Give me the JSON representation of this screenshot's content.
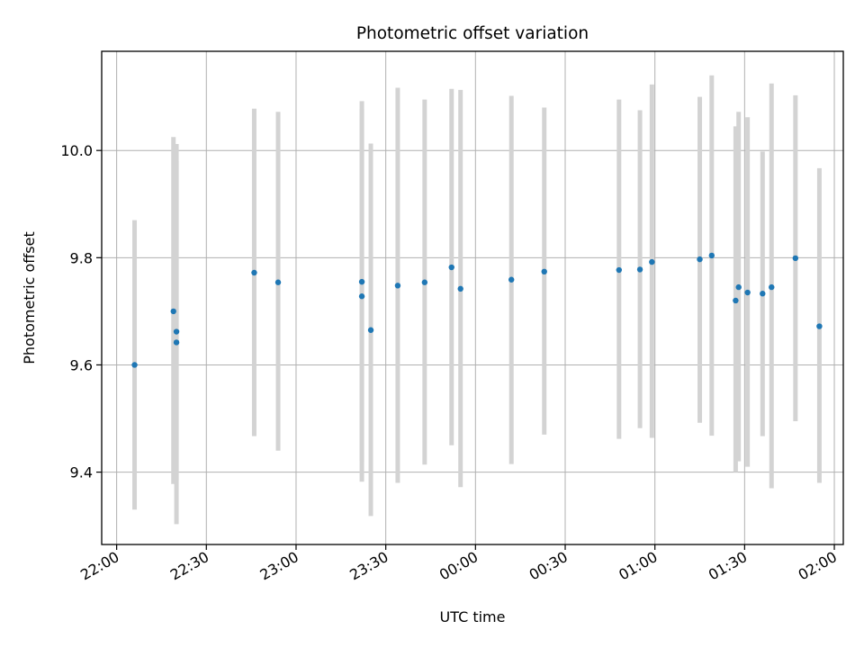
{
  "chart_data": {
    "type": "scatter",
    "title": "Photometric offset variation",
    "xlabel": "UTC time",
    "ylabel": "Photometric offset",
    "x_ticks": [
      "22:00",
      "22:30",
      "23:00",
      "23:30",
      "00:00",
      "00:30",
      "01:00",
      "01:30",
      "02:00"
    ],
    "x_range": [
      "21:55",
      "02:03"
    ],
    "ylim": [
      9.265,
      10.185
    ],
    "y_ticks": [
      9.4,
      9.6,
      9.8,
      10.0
    ],
    "grid": true,
    "colors": {
      "marker": "#1f77b4",
      "errorbar": "#d3d3d3",
      "grid": "#b0b0b0"
    },
    "points": [
      {
        "t": "22:06",
        "y": 9.6,
        "lo": 9.33,
        "hi": 9.87
      },
      {
        "t": "22:19",
        "y": 9.7,
        "lo": 9.378,
        "hi": 10.025
      },
      {
        "t": "22:20",
        "y": 9.662,
        "lo": 9.385,
        "hi": 10.012
      },
      {
        "t": "22:20",
        "y": 9.642,
        "lo": 9.303,
        "hi": 9.98
      },
      {
        "t": "22:46",
        "y": 9.772,
        "lo": 9.467,
        "hi": 10.078
      },
      {
        "t": "22:54",
        "y": 9.754,
        "lo": 9.44,
        "hi": 10.072
      },
      {
        "t": "23:22",
        "y": 9.728,
        "lo": 9.382,
        "hi": 10.078
      },
      {
        "t": "23:22",
        "y": 9.755,
        "lo": 9.42,
        "hi": 10.092
      },
      {
        "t": "23:25",
        "y": 9.665,
        "lo": 9.318,
        "hi": 10.013
      },
      {
        "t": "23:34",
        "y": 9.748,
        "lo": 9.38,
        "hi": 10.117
      },
      {
        "t": "23:43",
        "y": 9.754,
        "lo": 9.414,
        "hi": 10.095
      },
      {
        "t": "23:52",
        "y": 9.782,
        "lo": 9.45,
        "hi": 10.115
      },
      {
        "t": "23:55",
        "y": 9.742,
        "lo": 9.372,
        "hi": 10.113
      },
      {
        "t": "00:12",
        "y": 9.759,
        "lo": 9.415,
        "hi": 10.102
      },
      {
        "t": "00:23",
        "y": 9.774,
        "lo": 9.47,
        "hi": 10.08
      },
      {
        "t": "00:48",
        "y": 9.777,
        "lo": 9.462,
        "hi": 10.095
      },
      {
        "t": "00:55",
        "y": 9.778,
        "lo": 9.482,
        "hi": 10.075
      },
      {
        "t": "00:59",
        "y": 9.792,
        "lo": 9.464,
        "hi": 10.123
      },
      {
        "t": "01:15",
        "y": 9.797,
        "lo": 9.492,
        "hi": 10.1
      },
      {
        "t": "01:19",
        "y": 9.804,
        "lo": 9.468,
        "hi": 10.14
      },
      {
        "t": "01:27",
        "y": 9.72,
        "lo": 9.4,
        "hi": 10.045
      },
      {
        "t": "01:28",
        "y": 9.745,
        "lo": 9.42,
        "hi": 10.072
      },
      {
        "t": "01:31",
        "y": 9.735,
        "lo": 9.41,
        "hi": 10.062
      },
      {
        "t": "01:36",
        "y": 9.733,
        "lo": 9.467,
        "hi": 9.998
      },
      {
        "t": "01:39",
        "y": 9.745,
        "lo": 9.37,
        "hi": 10.125
      },
      {
        "t": "01:47",
        "y": 9.799,
        "lo": 9.495,
        "hi": 10.103
      },
      {
        "t": "01:55",
        "y": 9.672,
        "lo": 9.38,
        "hi": 9.967
      }
    ]
  }
}
